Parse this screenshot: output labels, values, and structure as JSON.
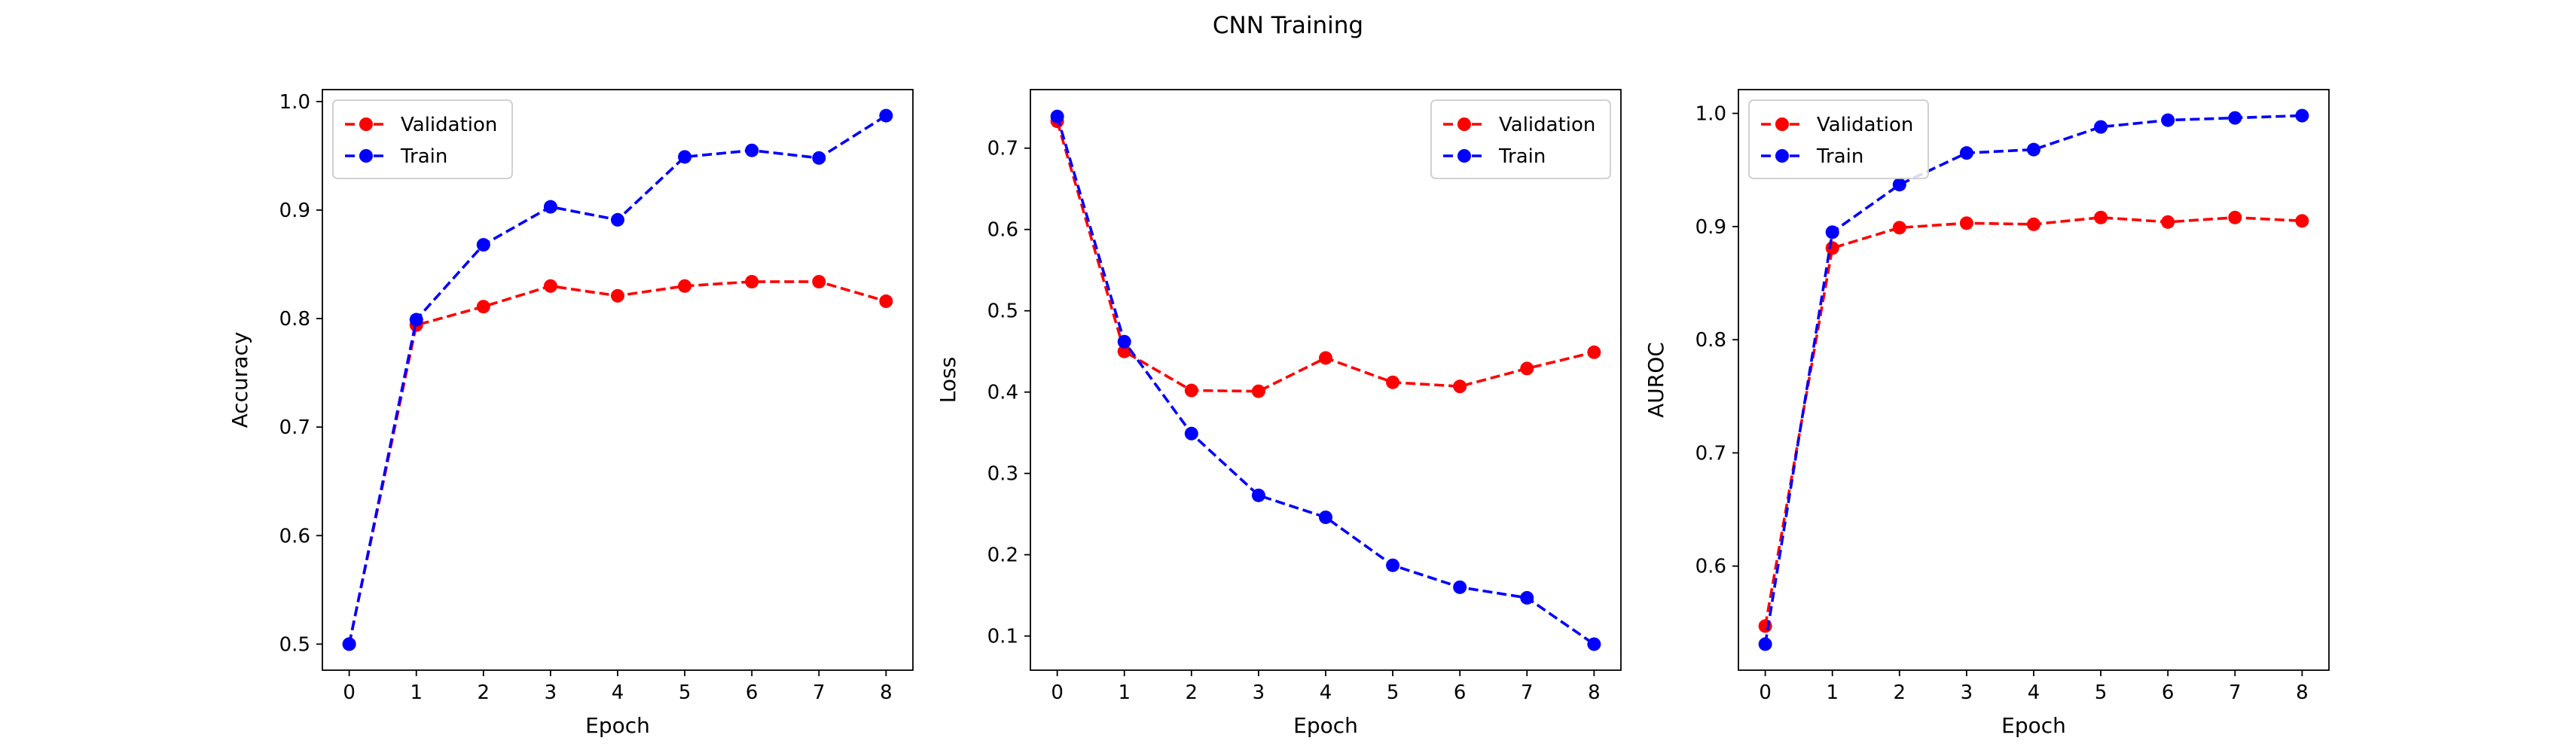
{
  "figure": {
    "title": "CNN Training"
  },
  "colors": {
    "validation": "#ff0000",
    "train": "#0000ff"
  },
  "chart_data": [
    {
      "type": "line",
      "xlabel": "Epoch",
      "ylabel": "Accuracy",
      "x": [
        0,
        1,
        2,
        3,
        4,
        5,
        6,
        7,
        8
      ],
      "xlim": [
        -0.4,
        8.4
      ],
      "ylim": [
        0.476,
        1.011
      ],
      "yticks": [
        0.5,
        0.6,
        0.7,
        0.8,
        0.9,
        1.0
      ],
      "legend_position": "top-left",
      "series": [
        {
          "name": "Validation",
          "color": "#ff0000",
          "values": [
            0.5,
            0.794,
            0.811,
            0.83,
            0.821,
            0.83,
            0.834,
            0.834,
            0.816
          ]
        },
        {
          "name": "Train",
          "color": "#0000ff",
          "values": [
            0.5,
            0.799,
            0.868,
            0.903,
            0.891,
            0.949,
            0.955,
            0.948,
            0.987
          ]
        }
      ]
    },
    {
      "type": "line",
      "xlabel": "Epoch",
      "ylabel": "Loss",
      "x": [
        0,
        1,
        2,
        3,
        4,
        5,
        6,
        7,
        8
      ],
      "xlim": [
        -0.4,
        8.4
      ],
      "ylim": [
        0.058,
        0.772
      ],
      "yticks": [
        0.1,
        0.2,
        0.3,
        0.4,
        0.5,
        0.6,
        0.7
      ],
      "legend_position": "top-right",
      "series": [
        {
          "name": "Validation",
          "color": "#ff0000",
          "values": [
            0.733,
            0.45,
            0.402,
            0.401,
            0.442,
            0.412,
            0.407,
            0.429,
            0.449
          ]
        },
        {
          "name": "Train",
          "color": "#0000ff",
          "values": [
            0.739,
            0.462,
            0.349,
            0.273,
            0.246,
            0.187,
            0.16,
            0.147,
            0.09
          ]
        }
      ]
    },
    {
      "type": "line",
      "xlabel": "Epoch",
      "ylabel": "AUROC",
      "x": [
        0,
        1,
        2,
        3,
        4,
        5,
        6,
        7,
        8
      ],
      "xlim": [
        -0.4,
        8.4
      ],
      "ylim": [
        0.508,
        1.021
      ],
      "yticks": [
        0.6,
        0.7,
        0.8,
        0.9,
        1.0
      ],
      "legend_position": "top-left",
      "series": [
        {
          "name": "Validation",
          "color": "#ff0000",
          "values": [
            0.547,
            0.881,
            0.899,
            0.903,
            0.902,
            0.908,
            0.904,
            0.908,
            0.905
          ]
        },
        {
          "name": "Train",
          "color": "#0000ff",
          "values": [
            0.531,
            0.895,
            0.937,
            0.965,
            0.968,
            0.988,
            0.994,
            0.996,
            0.998
          ]
        }
      ]
    }
  ]
}
